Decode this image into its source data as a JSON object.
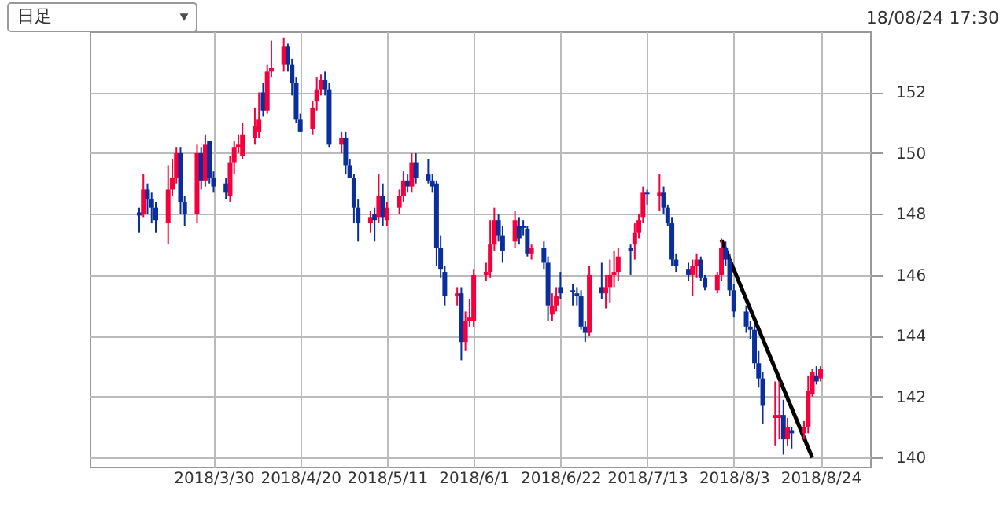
{
  "chart_data": {
    "type": "candlestick",
    "annotations": [
      "日足",
      "18/08/24 17:30"
    ],
    "x": [
      "2018-03-12",
      "2018-03-13",
      "2018-03-14",
      "2018-03-15",
      "2018-03-16",
      "2018-03-19",
      "2018-03-20",
      "2018-03-21",
      "2018-03-22",
      "2018-03-23",
      "2018-03-26",
      "2018-03-27",
      "2018-03-28",
      "2018-03-29",
      "2018-03-30",
      "2018-04-02",
      "2018-04-03",
      "2018-04-04",
      "2018-04-05",
      "2018-04-06",
      "2018-04-09",
      "2018-04-10",
      "2018-04-11",
      "2018-04-12",
      "2018-04-13",
      "2018-04-16",
      "2018-04-17",
      "2018-04-18",
      "2018-04-19",
      "2018-04-20",
      "2018-04-23",
      "2018-04-24",
      "2018-04-25",
      "2018-04-26",
      "2018-04-27",
      "2018-04-30",
      "2018-05-01",
      "2018-05-02",
      "2018-05-03",
      "2018-05-04",
      "2018-05-07",
      "2018-05-08",
      "2018-05-09",
      "2018-05-10",
      "2018-05-11",
      "2018-05-14",
      "2018-05-15",
      "2018-05-16",
      "2018-05-17",
      "2018-05-18",
      "2018-05-21",
      "2018-05-22",
      "2018-05-23",
      "2018-05-24",
      "2018-05-25",
      "2018-05-28",
      "2018-05-29",
      "2018-05-30",
      "2018-05-31",
      "2018-06-01",
      "2018-06-04",
      "2018-06-05",
      "2018-06-06",
      "2018-06-07",
      "2018-06-08",
      "2018-06-11",
      "2018-06-12",
      "2018-06-13",
      "2018-06-14",
      "2018-06-15",
      "2018-06-18",
      "2018-06-19",
      "2018-06-20",
      "2018-06-21",
      "2018-06-22",
      "2018-06-25",
      "2018-06-26",
      "2018-06-27",
      "2018-06-28",
      "2018-06-29",
      "2018-07-02",
      "2018-07-03",
      "2018-07-04",
      "2018-07-05",
      "2018-07-06",
      "2018-07-09",
      "2018-07-10",
      "2018-07-11",
      "2018-07-12",
      "2018-07-13",
      "2018-07-16",
      "2018-07-17",
      "2018-07-18",
      "2018-07-19",
      "2018-07-20",
      "2018-07-23",
      "2018-07-24",
      "2018-07-25",
      "2018-07-26",
      "2018-07-27",
      "2018-07-30",
      "2018-07-31",
      "2018-08-01",
      "2018-08-02",
      "2018-08-03",
      "2018-08-06",
      "2018-08-07",
      "2018-08-08",
      "2018-08-09",
      "2018-08-10",
      "2018-08-13",
      "2018-08-14",
      "2018-08-15",
      "2018-08-16",
      "2018-08-17",
      "2018-08-20",
      "2018-08-21",
      "2018-08-22",
      "2018-08-23",
      "2018-08-24"
    ],
    "ohlc": [
      [
        148.05,
        148.2,
        147.4,
        147.95
      ],
      [
        148.0,
        149.3,
        147.9,
        148.8
      ],
      [
        148.8,
        149.0,
        148.0,
        148.5
      ],
      [
        148.5,
        148.7,
        147.7,
        148.2
      ],
      [
        148.2,
        148.4,
        147.4,
        147.8
      ],
      [
        147.7,
        149.6,
        147.0,
        148.8
      ],
      [
        148.8,
        149.8,
        148.6,
        149.2
      ],
      [
        149.2,
        150.2,
        149.0,
        150.0
      ],
      [
        150.0,
        150.2,
        148.0,
        148.4
      ],
      [
        148.4,
        148.6,
        147.6,
        148.0
      ],
      [
        148.0,
        150.3,
        147.7,
        150.0
      ],
      [
        150.0,
        150.2,
        148.8,
        149.1
      ],
      [
        149.1,
        150.6,
        148.9,
        150.3
      ],
      [
        150.4,
        150.4,
        149.0,
        149.2
      ],
      [
        149.2,
        149.4,
        148.7,
        148.9
      ],
      [
        149.0,
        149.2,
        148.5,
        148.7
      ],
      [
        148.6,
        149.9,
        148.4,
        149.7
      ],
      [
        149.7,
        150.4,
        149.3,
        150.2
      ],
      [
        150.2,
        150.6,
        150.0,
        150.3
      ],
      [
        149.9,
        151.0,
        149.8,
        150.6
      ],
      [
        150.5,
        151.5,
        150.3,
        150.9
      ],
      [
        150.7,
        152.0,
        150.5,
        151.1
      ],
      [
        152.0,
        152.3,
        151.2,
        151.4
      ],
      [
        151.4,
        152.9,
        151.3,
        152.7
      ],
      [
        152.7,
        153.7,
        152.5,
        152.8
      ],
      [
        152.9,
        153.8,
        152.7,
        153.5
      ],
      [
        153.5,
        153.6,
        152.7,
        152.9
      ],
      [
        152.9,
        153.1,
        151.9,
        152.3
      ],
      [
        152.3,
        152.5,
        151.0,
        151.1
      ],
      [
        151.1,
        151.3,
        150.7,
        150.7
      ],
      [
        150.8,
        151.7,
        150.6,
        151.5
      ],
      [
        151.7,
        152.5,
        151.4,
        152.1
      ],
      [
        152.1,
        152.6,
        151.9,
        152.4
      ],
      [
        152.4,
        152.7,
        151.9,
        152.1
      ],
      [
        152.1,
        152.3,
        150.2,
        150.3
      ],
      [
        150.3,
        150.7,
        150.0,
        150.5
      ],
      [
        150.5,
        150.7,
        149.3,
        149.6
      ],
      [
        149.6,
        149.8,
        149.2,
        149.2
      ],
      [
        149.2,
        149.3,
        147.7,
        148.2
      ],
      [
        148.2,
        148.5,
        147.1,
        147.7
      ],
      [
        147.7,
        148.1,
        147.4,
        147.9
      ],
      [
        148.0,
        148.2,
        147.1,
        147.8
      ],
      [
        147.9,
        149.3,
        147.7,
        148.6
      ],
      [
        148.6,
        149.0,
        147.6,
        147.9
      ],
      [
        147.8,
        148.4,
        147.6,
        148.2
      ],
      [
        148.2,
        148.8,
        148.0,
        148.6
      ],
      [
        148.6,
        149.4,
        148.4,
        149.1
      ],
      [
        149.1,
        149.3,
        148.7,
        148.9
      ],
      [
        148.9,
        150.0,
        148.7,
        149.7
      ],
      [
        149.7,
        150.0,
        149.0,
        149.2
      ],
      [
        149.3,
        149.8,
        149.0,
        149.1
      ],
      [
        149.1,
        149.3,
        148.7,
        148.9
      ],
      [
        149.0,
        149.1,
        146.3,
        146.9
      ],
      [
        146.9,
        147.3,
        145.9,
        146.2
      ],
      [
        146.1,
        146.3,
        145.0,
        145.3
      ],
      [
        145.3,
        145.6,
        145.0,
        145.4
      ],
      [
        145.4,
        145.6,
        143.2,
        143.8
      ],
      [
        143.8,
        144.8,
        143.5,
        144.5
      ],
      [
        144.5,
        145.2,
        144.3,
        144.6
      ],
      [
        144.5,
        146.2,
        144.3,
        146.0
      ],
      [
        146.0,
        146.4,
        145.8,
        146.1
      ],
      [
        146.1,
        147.8,
        145.9,
        147.0
      ],
      [
        147.0,
        148.2,
        146.8,
        147.8
      ],
      [
        147.8,
        148.0,
        147.1,
        147.3
      ],
      [
        147.3,
        147.6,
        146.4,
        146.8
      ],
      [
        147.1,
        148.1,
        146.9,
        147.8
      ],
      [
        147.6,
        147.9,
        147.0,
        147.2
      ],
      [
        147.6,
        147.8,
        147.3,
        147.55
      ],
      [
        147.5,
        147.6,
        146.6,
        146.7
      ],
      [
        146.7,
        147.0,
        146.5,
        146.9
      ],
      [
        146.9,
        147.1,
        146.2,
        146.4
      ],
      [
        146.4,
        146.6,
        144.5,
        145.0
      ],
      [
        144.7,
        145.4,
        144.5,
        145.0
      ],
      [
        145.0,
        145.6,
        144.8,
        145.3
      ],
      [
        145.6,
        146.1,
        145.2,
        145.4
      ],
      [
        145.5,
        145.7,
        145.0,
        145.45
      ],
      [
        145.4,
        145.6,
        145.0,
        145.3
      ],
      [
        145.3,
        145.5,
        144.2,
        144.3
      ],
      [
        144.3,
        144.5,
        143.8,
        144.1
      ],
      [
        144.1,
        146.3,
        144.0,
        146.0
      ],
      [
        145.6,
        146.4,
        145.2,
        145.4
      ],
      [
        145.4,
        146.0,
        144.9,
        145.6
      ],
      [
        145.6,
        146.5,
        145.1,
        146.0
      ],
      [
        146.0,
        146.8,
        145.6,
        146.1
      ],
      [
        146.1,
        146.9,
        145.8,
        146.6
      ],
      [
        146.9,
        147.0,
        146.0,
        146.8
      ],
      [
        147.0,
        147.7,
        146.5,
        147.4
      ],
      [
        147.4,
        148.0,
        147.2,
        147.8
      ],
      [
        147.9,
        148.9,
        147.7,
        148.7
      ],
      [
        148.7,
        148.8,
        148.3,
        148.65
      ],
      [
        148.6,
        149.3,
        148.1,
        148.7
      ],
      [
        148.7,
        148.9,
        148.0,
        148.2
      ],
      [
        148.2,
        148.3,
        147.6,
        147.7
      ],
      [
        147.7,
        147.9,
        146.3,
        146.5
      ],
      [
        146.5,
        146.7,
        146.1,
        146.3
      ],
      [
        146.2,
        146.4,
        145.8,
        146.0
      ],
      [
        146.0,
        146.5,
        145.3,
        146.3
      ],
      [
        146.3,
        146.7,
        145.9,
        146.5
      ],
      [
        146.5,
        146.6,
        145.8,
        145.9
      ],
      [
        145.9,
        146.0,
        145.5,
        145.6
      ],
      [
        145.5,
        146.1,
        145.4,
        146.0
      ],
      [
        146.0,
        147.2,
        145.8,
        146.9
      ],
      [
        146.9,
        147.1,
        146.3,
        146.5
      ],
      [
        146.5,
        146.7,
        145.3,
        145.5
      ],
      [
        145.5,
        145.7,
        144.6,
        144.8
      ],
      [
        144.8,
        145.0,
        144.1,
        144.3
      ],
      [
        144.3,
        144.5,
        143.9,
        144.2
      ],
      [
        144.2,
        144.4,
        142.9,
        143.1
      ],
      [
        143.1,
        143.5,
        142.3,
        142.6
      ],
      [
        142.6,
        142.8,
        141.1,
        141.7
      ],
      [
        141.3,
        142.5,
        140.4,
        141.4
      ],
      [
        141.3,
        142.5,
        140.6,
        141.4
      ],
      [
        141.4,
        141.9,
        140.1,
        140.6
      ],
      [
        140.6,
        141.3,
        140.4,
        141.0
      ],
      [
        140.9,
        141.0,
        140.3,
        140.8
      ],
      [
        140.8,
        141.2,
        140.6,
        141.0
      ],
      [
        141.0,
        142.7,
        140.8,
        142.2
      ],
      [
        142.1,
        142.9,
        142.0,
        142.8
      ],
      [
        142.7,
        143.0,
        142.4,
        142.5
      ],
      [
        142.6,
        143.0,
        142.5,
        142.9
      ]
    ],
    "colors": [
      "#0a2f9a",
      "#f5003d",
      "#0a2f9a",
      "#0a2f9a",
      "#0a2f9a",
      "#f5003d",
      "#f5003d",
      "#f5003d",
      "#0a2f9a",
      "#0a2f9a",
      "#f5003d",
      "#0a2f9a",
      "#f5003d",
      "#0a2f9a",
      "#0a2f9a",
      "#0a2f9a",
      "#f5003d",
      "#f5003d",
      "#f5003d",
      "#f5003d",
      "#f5003d",
      "#f5003d",
      "#0a2f9a",
      "#f5003d",
      "#f5003d",
      "#f5003d",
      "#0a2f9a",
      "#0a2f9a",
      "#0a2f9a",
      "#0a2f9a",
      "#f5003d",
      "#f5003d",
      "#f5003d",
      "#0a2f9a",
      "#0a2f9a",
      "#f5003d",
      "#0a2f9a",
      "#0a2f9a",
      "#0a2f9a",
      "#0a2f9a",
      "#f5003d",
      "#0a2f9a",
      "#f5003d",
      "#0a2f9a",
      "#f5003d",
      "#f5003d",
      "#f5003d",
      "#0a2f9a",
      "#f5003d",
      "#0a2f9a",
      "#0a2f9a",
      "#0a2f9a",
      "#0a2f9a",
      "#0a2f9a",
      "#0a2f9a",
      "#f5003d",
      "#0a2f9a",
      "#f5003d",
      "#f5003d",
      "#f5003d",
      "#f5003d",
      "#f5003d",
      "#f5003d",
      "#0a2f9a",
      "#0a2f9a",
      "#f5003d",
      "#0a2f9a",
      "#0a2f9a",
      "#0a2f9a",
      "#f5003d",
      "#0a2f9a",
      "#0a2f9a",
      "#f5003d",
      "#f5003d",
      "#0a2f9a",
      "#0a2f9a",
      "#0a2f9a",
      "#0a2f9a",
      "#0a2f9a",
      "#f5003d",
      "#0a2f9a",
      "#f5003d",
      "#f5003d",
      "#f5003d",
      "#f5003d",
      "#0a2f9a",
      "#f5003d",
      "#f5003d",
      "#f5003d",
      "#0a2f9a",
      "#f5003d",
      "#0a2f9a",
      "#0a2f9a",
      "#0a2f9a",
      "#0a2f9a",
      "#0a2f9a",
      "#f5003d",
      "#f5003d",
      "#0a2f9a",
      "#0a2f9a",
      "#f5003d",
      "#f5003d",
      "#0a2f9a",
      "#0a2f9a",
      "#0a2f9a",
      "#0a2f9a",
      "#0a2f9a",
      "#0a2f9a",
      "#0a2f9a",
      "#0a2f9a",
      "#f5003d",
      "#f5003d",
      "#0a2f9a",
      "#f5003d",
      "#0a2f9a",
      "#f5003d",
      "#f5003d",
      "#f5003d",
      "#0a2f9a",
      "#f5003d"
    ],
    "series": [
      {
        "type": "line",
        "color": "#000000",
        "x": [
          "2018-07-31",
          "2018-08-22"
        ],
        "values": [
          147.15,
          140.0
        ]
      }
    ],
    "xlim": [
      "2018-02-28",
      "2018-09-05"
    ],
    "xticks": [
      {
        "value": "2018-03-30",
        "label": "2018/3/30"
      },
      {
        "value": "2018-04-20",
        "label": "2018/4/20"
      },
      {
        "value": "2018-05-11",
        "label": "2018/5/11"
      },
      {
        "value": "2018-06-01",
        "label": "2018/6/1"
      },
      {
        "value": "2018-06-22",
        "label": "2018/6/22"
      },
      {
        "value": "2018-07-13",
        "label": "2018/7/13"
      },
      {
        "value": "2018-08-03",
        "label": "2018/8/3"
      },
      {
        "value": "2018-08-24",
        "label": "2018/8/24"
      }
    ],
    "ylim": [
      139.7,
      154.0
    ],
    "yticks": [
      140,
      142,
      144,
      146,
      148,
      150,
      152
    ],
    "grid": true
  }
}
